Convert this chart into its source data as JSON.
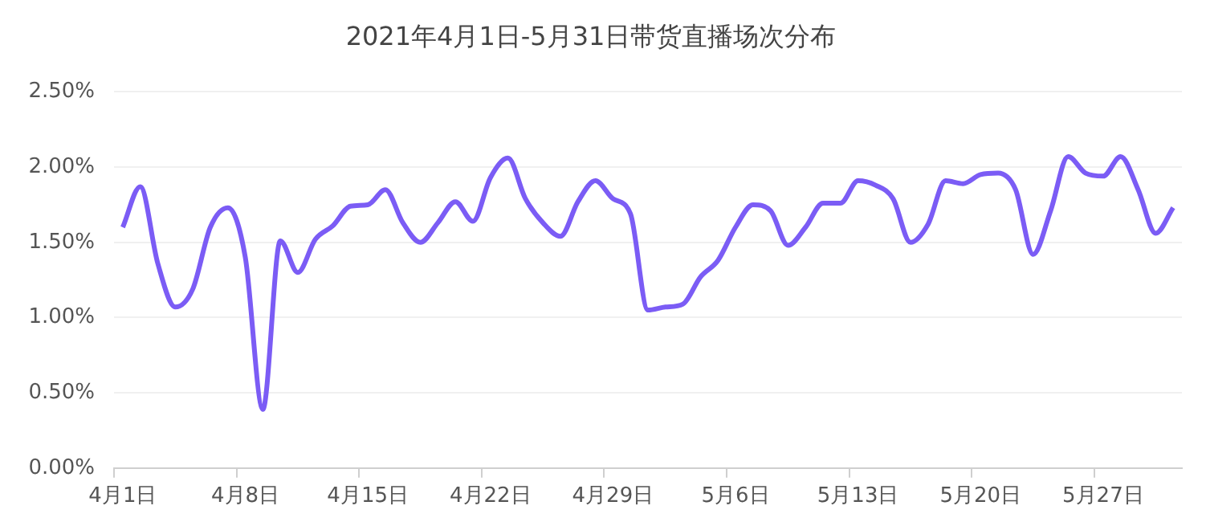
{
  "chart_data": {
    "type": "line",
    "title": "2021年4月1日-5月31日带货直播场次分布",
    "categories": [
      "4月1日",
      null,
      null,
      null,
      null,
      null,
      null,
      "4月8日",
      null,
      null,
      null,
      null,
      null,
      null,
      "4月15日",
      null,
      null,
      null,
      null,
      null,
      null,
      "4月22日",
      null,
      null,
      null,
      null,
      null,
      null,
      "4月29日",
      null,
      null,
      null,
      null,
      null,
      null,
      "5月6日",
      null,
      null,
      null,
      null,
      null,
      null,
      "5月13日",
      null,
      null,
      null,
      null,
      null,
      null,
      "5月20日",
      null,
      null,
      null,
      null,
      null,
      null,
      "5月27日",
      null,
      null,
      null,
      null
    ],
    "series": [
      {
        "color": "#7b5cf5",
        "values": [
          1.6,
          1.87,
          1.36,
          1.07,
          1.19,
          1.6,
          1.73,
          1.4,
          0.39,
          1.51,
          1.3,
          1.52,
          1.61,
          1.74,
          1.75,
          1.85,
          1.63,
          1.5,
          1.63,
          1.77,
          1.64,
          1.93,
          2.06,
          1.79,
          1.63,
          1.54,
          1.77,
          1.91,
          1.79,
          1.69,
          1.05,
          1.07,
          1.09,
          1.27,
          1.38,
          1.6,
          1.75,
          1.71,
          1.48,
          1.6,
          1.76,
          1.76,
          1.91,
          1.88,
          1.79,
          1.5,
          1.62,
          1.91,
          1.89,
          1.95,
          1.96,
          1.85,
          1.42,
          1.71,
          2.07,
          1.96,
          1.94,
          2.07,
          1.85,
          1.56,
          1.73
        ]
      }
    ],
    "ylim": [
      0,
      2.5
    ],
    "yticks": [
      {
        "value": 0,
        "label": "0.00%"
      },
      {
        "value": 0.5,
        "label": "0.50%"
      },
      {
        "value": 1,
        "label": "1.00%"
      },
      {
        "value": 1.5,
        "label": "1.50%"
      },
      {
        "value": 2,
        "label": "2.00%"
      },
      {
        "value": 2.5,
        "label": "2.50%"
      }
    ],
    "grid": "y",
    "marker": "none"
  }
}
